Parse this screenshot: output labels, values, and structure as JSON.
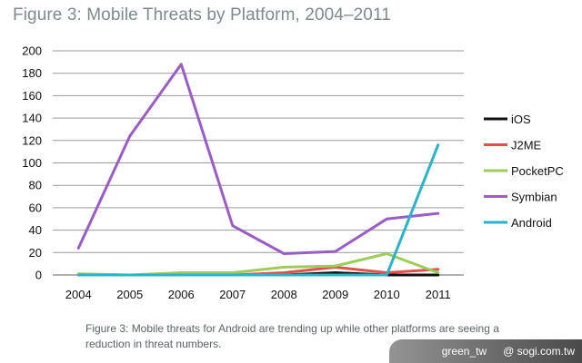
{
  "header": {
    "title": "Figure 3: Mobile Threats by Platform, 2004–2011"
  },
  "caption": "Figure 3: Mobile threats for Android are trending up while other platforms are seeing a reduction in threat numbers.",
  "watermark": {
    "left": "green_tw",
    "right": "@ sogi.com.tw"
  },
  "chart_data": {
    "type": "line",
    "categories": [
      "2004",
      "2005",
      "2006",
      "2007",
      "2008",
      "2009",
      "2010",
      "2011"
    ],
    "ylim": [
      0,
      200
    ],
    "yticks": [
      0,
      20,
      40,
      60,
      80,
      100,
      120,
      140,
      160,
      180,
      200
    ],
    "grid": "horizontal",
    "legend_position": "right",
    "series": [
      {
        "name": "iOS",
        "color": "#111111",
        "values": [
          0,
          0,
          0,
          0,
          0,
          2,
          0,
          0
        ]
      },
      {
        "name": "J2ME",
        "color": "#e0514a",
        "values": [
          0,
          0,
          0,
          0,
          2,
          7,
          2,
          5
        ]
      },
      {
        "name": "PocketPC",
        "color": "#9ccc5a",
        "values": [
          1,
          0,
          2,
          2,
          7,
          8,
          19,
          2
        ]
      },
      {
        "name": "Symbian",
        "color": "#9a5cc6",
        "values": [
          24,
          124,
          188,
          44,
          19,
          21,
          50,
          55
        ]
      },
      {
        "name": "Android",
        "color": "#2ab3cc",
        "values": [
          0,
          0,
          0,
          0,
          0,
          0,
          0,
          116
        ]
      }
    ]
  }
}
